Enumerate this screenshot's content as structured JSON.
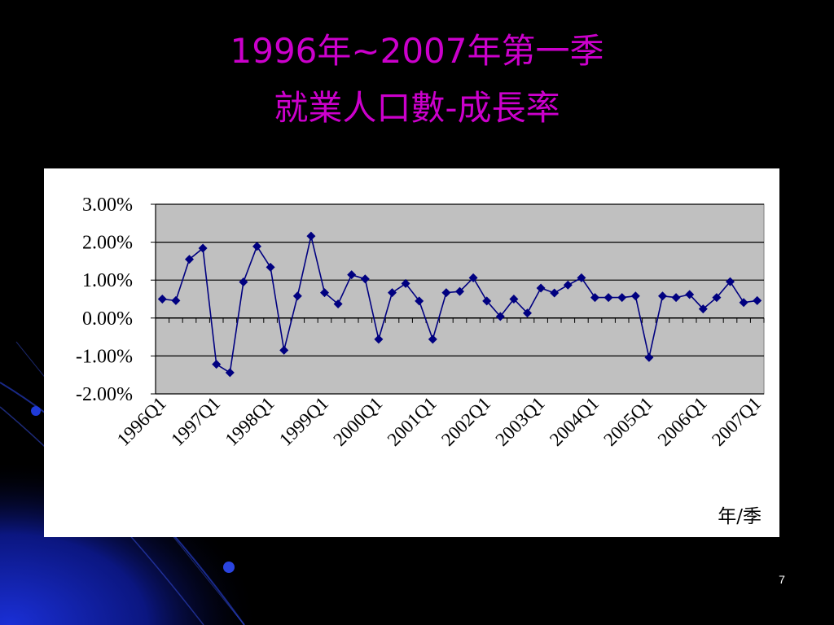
{
  "slide": {
    "title_line1": "1996年~2007年第一季",
    "title_line2": "就業人口數-成長率",
    "page_number": "7",
    "colors": {
      "background": "#000000",
      "title": "#cc00cc",
      "chart_panel": "#ffffff",
      "plot_area": "#c0c0c0",
      "series": "#000080",
      "decor": "#0a1a8c"
    }
  },
  "chart_data": {
    "type": "line",
    "title": "",
    "xlabel": "年/季",
    "ylabel": "",
    "ylim": [
      -2,
      3
    ],
    "yticks": [
      3,
      2,
      1,
      0,
      -1,
      -2
    ],
    "ytick_labels": [
      "3.00%",
      "2.00%",
      "1.00%",
      "0.00%",
      "-1.00%",
      "-2.00%"
    ],
    "xtick_labels": [
      "1996Q1",
      "1997Q1",
      "1998Q1",
      "1999Q1",
      "2000Q1",
      "2001Q1",
      "2002Q1",
      "2003Q1",
      "2004Q1",
      "2005Q1",
      "2006Q1",
      "2007Q1"
    ],
    "grid": true,
    "legend": "none",
    "marker": "diamond",
    "x": [
      "1996Q1",
      "1996Q2",
      "1996Q3",
      "1996Q4",
      "1997Q1",
      "1997Q2",
      "1997Q3",
      "1997Q4",
      "1998Q1",
      "1998Q2",
      "1998Q3",
      "1998Q4",
      "1999Q1",
      "1999Q2",
      "1999Q3",
      "1999Q4",
      "2000Q1",
      "2000Q2",
      "2000Q3",
      "2000Q4",
      "2001Q1",
      "2001Q2",
      "2001Q3",
      "2001Q4",
      "2002Q1",
      "2002Q2",
      "2002Q3",
      "2002Q4",
      "2003Q1",
      "2003Q2",
      "2003Q3",
      "2003Q4",
      "2004Q1",
      "2004Q2",
      "2004Q3",
      "2004Q4",
      "2005Q1",
      "2005Q2",
      "2005Q3",
      "2005Q4",
      "2006Q1",
      "2006Q2",
      "2006Q3",
      "2006Q4",
      "2007Q1"
    ],
    "series": [
      {
        "values": [
          0.5,
          0.46,
          1.55,
          1.84,
          -1.22,
          -1.44,
          0.95,
          1.89,
          1.34,
          -0.85,
          0.58,
          2.16,
          0.67,
          0.37,
          1.14,
          1.03,
          -0.56,
          0.67,
          0.91,
          0.45,
          -0.56,
          0.67,
          0.7,
          1.06,
          0.45,
          0.04,
          0.5,
          0.13,
          0.79,
          0.66,
          0.87,
          1.06,
          0.54,
          0.54,
          0.54,
          0.58,
          -1.04,
          0.58,
          0.54,
          0.62,
          0.24,
          0.54,
          0.96,
          0.41,
          0.46
        ]
      }
    ]
  }
}
